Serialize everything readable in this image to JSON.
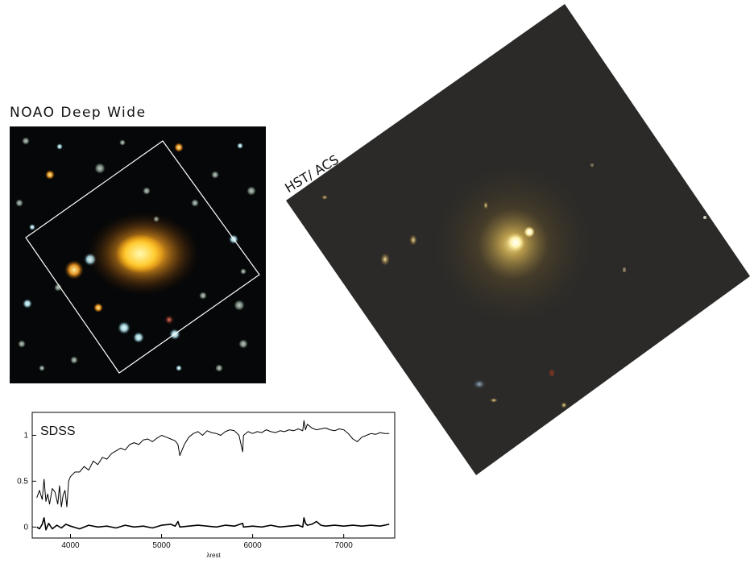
{
  "figure": {
    "noao_label": "NOAO Deep Wide",
    "hst_label": "HST/ ACS"
  },
  "chart_data": {
    "type": "line",
    "title": "SDSS",
    "xlabel": "λrest",
    "ylabel": "",
    "xlim": [
      3580,
      7560
    ],
    "ylim": [
      -0.12,
      1.25
    ],
    "x_ticks": [
      4000,
      5000,
      6000,
      7000
    ],
    "y_ticks": [
      0,
      0.5,
      1
    ],
    "grid": false,
    "series": [
      {
        "x": [
          3630,
          3660,
          3690,
          3710,
          3730,
          3750,
          3770,
          3800,
          3830,
          3860,
          3880,
          3900,
          3920,
          3940,
          3960,
          3980,
          4000,
          4050,
          4100,
          4150,
          4200,
          4250,
          4300,
          4350,
          4400,
          4450,
          4500,
          4550,
          4600,
          4650,
          4700,
          4750,
          4800,
          4850,
          4900,
          4950,
          5000,
          5050,
          5100,
          5150,
          5180,
          5200,
          5250,
          5300,
          5350,
          5400,
          5450,
          5500,
          5550,
          5600,
          5650,
          5700,
          5750,
          5800,
          5850,
          5890,
          5900,
          5950,
          6000,
          6050,
          6100,
          6150,
          6200,
          6250,
          6300,
          6350,
          6400,
          6450,
          6500,
          6550,
          6563,
          6580,
          6600,
          6650,
          6700,
          6750,
          6800,
          6850,
          6900,
          6950,
          7000,
          7050,
          7100,
          7150,
          7200,
          7250,
          7300,
          7350,
          7400,
          7450,
          7500
        ],
        "y": [
          0.32,
          0.4,
          0.3,
          0.52,
          0.28,
          0.36,
          0.25,
          0.42,
          0.38,
          0.25,
          0.45,
          0.22,
          0.35,
          0.4,
          0.22,
          0.5,
          0.55,
          0.6,
          0.6,
          0.66,
          0.62,
          0.72,
          0.68,
          0.76,
          0.74,
          0.8,
          0.83,
          0.86,
          0.84,
          0.9,
          0.92,
          0.9,
          0.95,
          0.96,
          0.93,
          0.97,
          1.0,
          0.98,
          0.96,
          0.94,
          0.9,
          0.78,
          0.9,
          0.98,
          1.02,
          1.04,
          1.0,
          1.05,
          1.03,
          1.02,
          1.0,
          1.04,
          1.06,
          1.05,
          1.0,
          0.82,
          1.0,
          1.04,
          1.02,
          1.04,
          1.03,
          1.06,
          1.04,
          1.03,
          1.05,
          1.04,
          1.06,
          1.05,
          1.07,
          1.05,
          1.16,
          1.06,
          1.12,
          1.08,
          1.06,
          1.07,
          1.08,
          1.06,
          1.05,
          1.07,
          1.06,
          1.02,
          0.96,
          0.93,
          0.98,
          1.0,
          1.02,
          1.01,
          1.03,
          1.02,
          1.02
        ]
      },
      {
        "x": [
          3630,
          3660,
          3690,
          3710,
          3730,
          3760,
          3800,
          3850,
          3900,
          3950,
          4000,
          4100,
          4200,
          4300,
          4400,
          4500,
          4600,
          4700,
          4800,
          4900,
          5000,
          5100,
          5150,
          5180,
          5200,
          5300,
          5400,
          5500,
          5600,
          5700,
          5800,
          5890,
          5900,
          6000,
          6100,
          6200,
          6300,
          6400,
          6500,
          6550,
          6563,
          6580,
          6600,
          6650,
          6700,
          6750,
          6800,
          6900,
          7000,
          7100,
          7200,
          7300,
          7400,
          7500
        ],
        "y": [
          0.0,
          -0.02,
          0.03,
          0.1,
          -0.03,
          0.04,
          -0.02,
          0.02,
          -0.01,
          0.03,
          0.01,
          -0.02,
          0.02,
          0.0,
          0.01,
          -0.01,
          0.02,
          0.0,
          0.01,
          -0.01,
          0.02,
          0.03,
          0.01,
          0.06,
          0.0,
          0.01,
          0.02,
          0.01,
          0.0,
          0.02,
          0.01,
          0.04,
          0.0,
          0.01,
          0.0,
          0.02,
          0.0,
          0.01,
          0.02,
          0.0,
          0.1,
          0.04,
          0.02,
          0.03,
          0.06,
          0.02,
          0.01,
          0.02,
          0.01,
          0.02,
          0.01,
          0.02,
          0.01,
          0.03
        ]
      }
    ]
  }
}
